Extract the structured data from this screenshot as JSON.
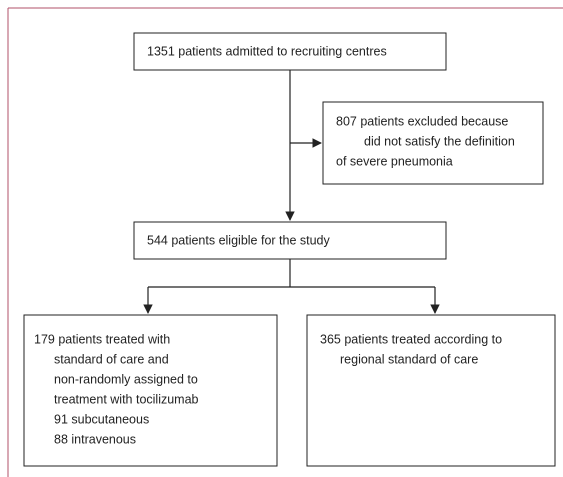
{
  "nodes": [
    {
      "lines": [
        "1351 patients admitted to recruiting centres"
      ]
    },
    {
      "lines": [
        "807 patients excluded because",
        "did not satisfy the definition",
        "of severe pneumonia"
      ]
    },
    {
      "lines": [
        "544 patients eligible for the study"
      ]
    },
    {
      "lines": [
        "179 patients treated with",
        "standard of care and",
        "non-randomly assigned to",
        "treatment with tocilizumab",
        "91 subcutaneous",
        "88 intravenous"
      ]
    },
    {
      "lines": [
        "365 patients treated according to",
        "regional standard of care"
      ]
    }
  ]
}
